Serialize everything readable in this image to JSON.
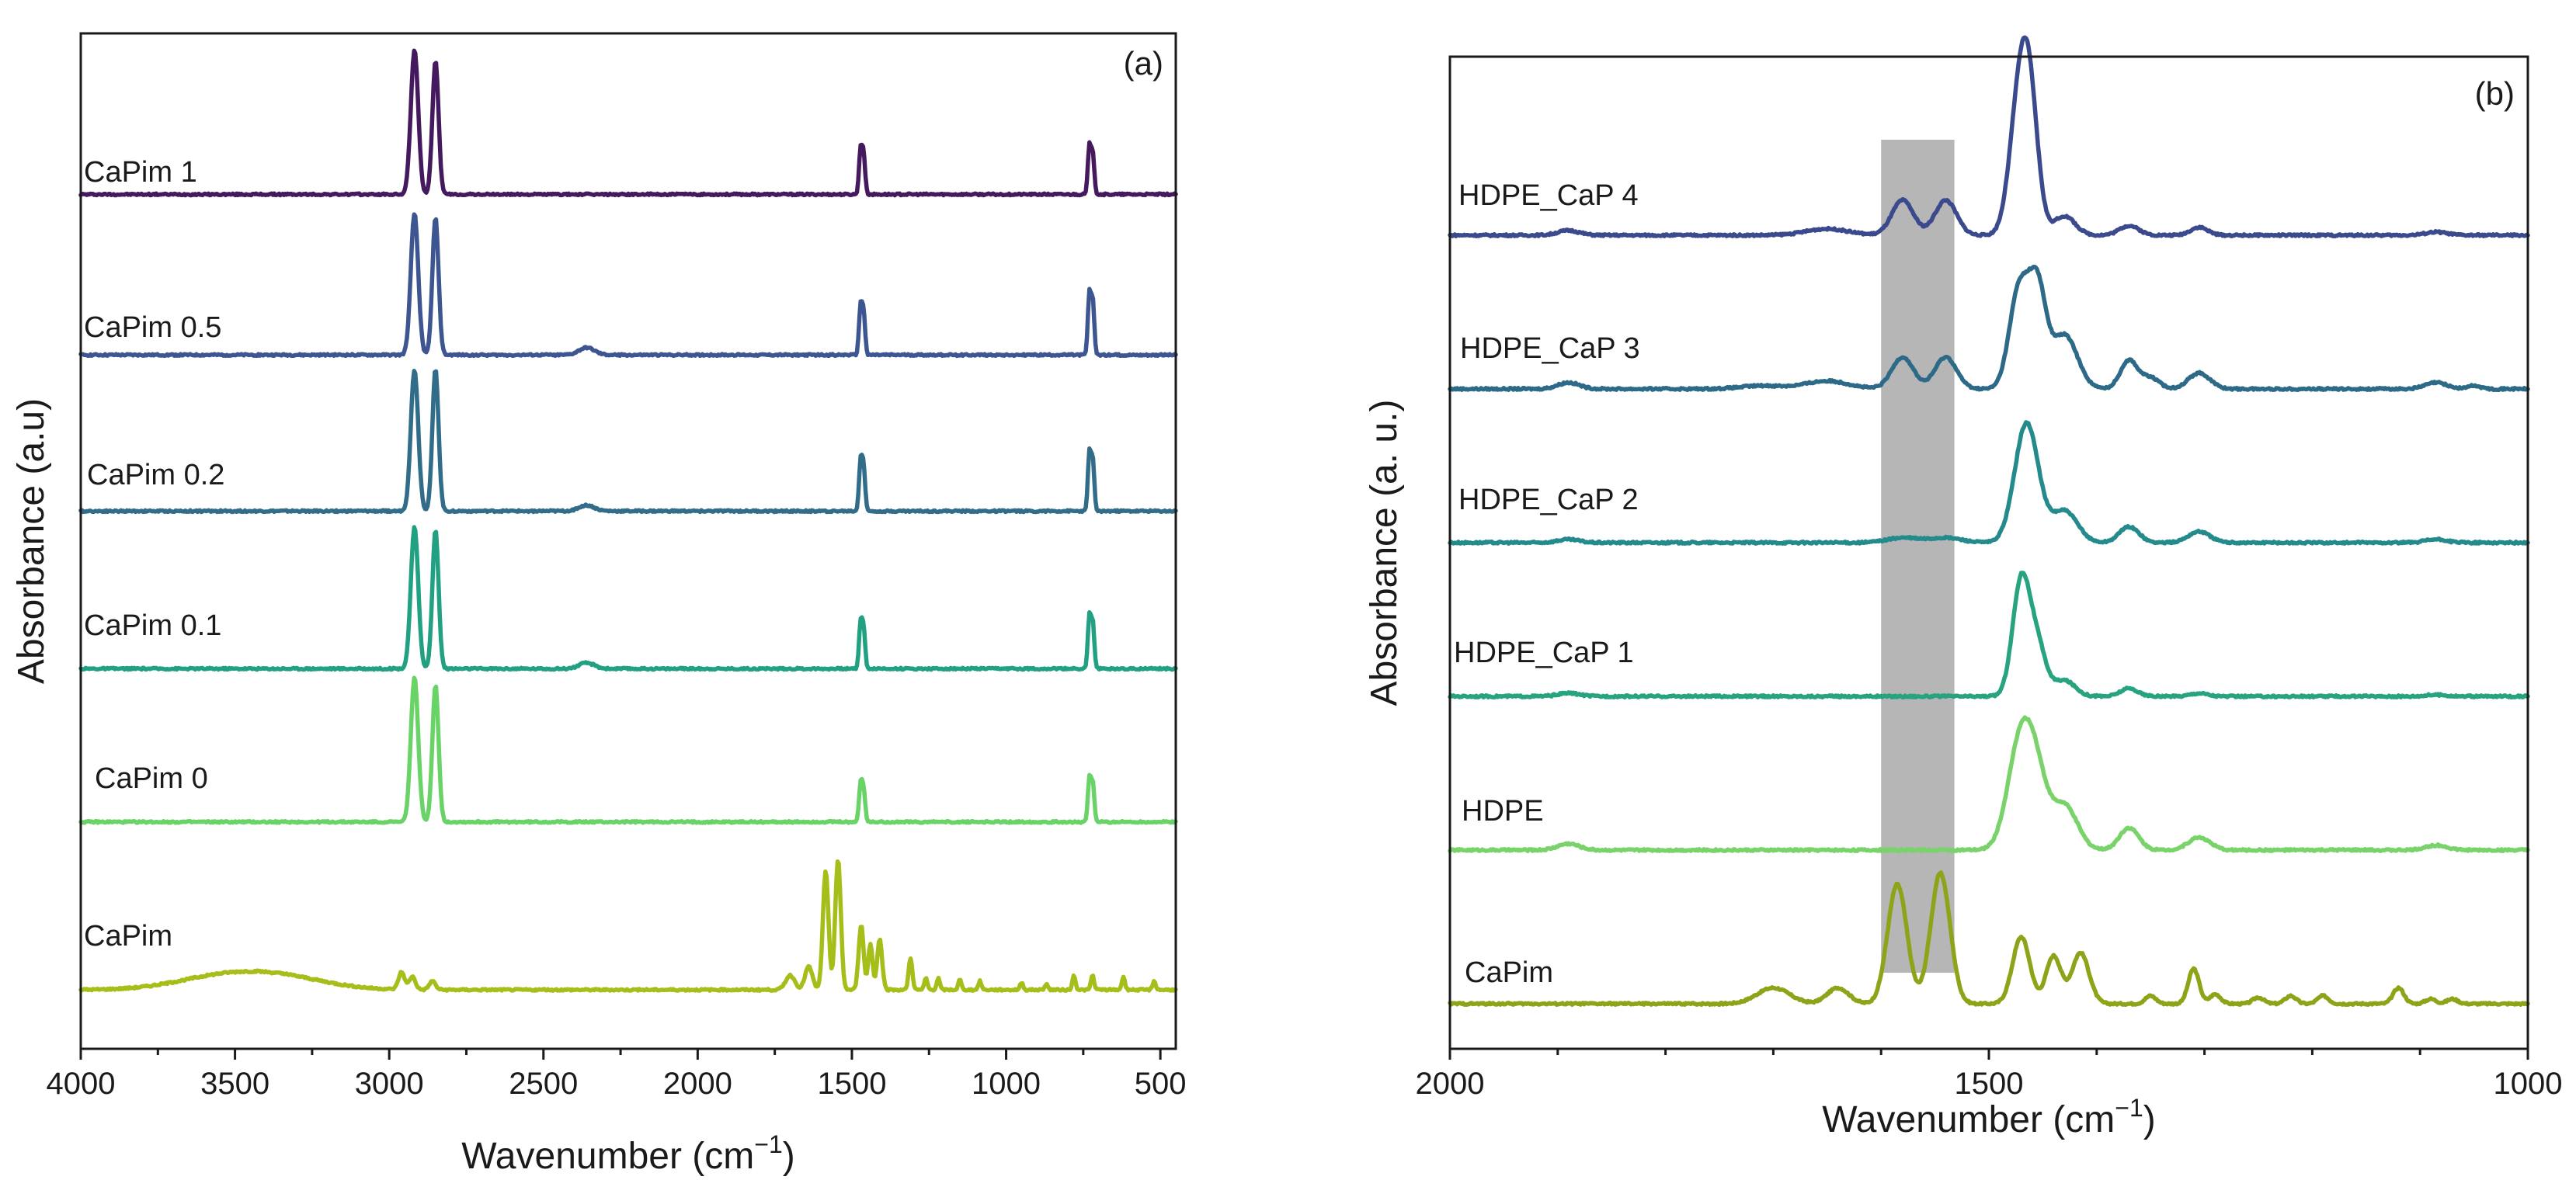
{
  "chart_data": [
    {
      "panel": "(a)",
      "type": "line",
      "subtype": "offset-spectra",
      "xlabel": "Wavenumber (cm",
      "xlabel_superscript": "−1",
      "xlabel_suffix": ")",
      "ylabel": "Absorbance (a.u)",
      "xlim": [
        4000,
        450
      ],
      "x_reversed": true,
      "xticks": [
        4000,
        3500,
        3000,
        2500,
        2000,
        1500,
        1000,
        500
      ],
      "yticks_visible": false,
      "grid": false,
      "series": [
        {
          "name": "CaPim 1",
          "color": "#44195e",
          "offset": 5.45,
          "baseline_drift": 0.0,
          "peaks": [
            [
              2918,
              1.0,
              12
            ],
            [
              2850,
              0.92,
              10
            ],
            [
              1472,
              0.3,
              5
            ],
            [
              1462,
              0.27,
              5
            ],
            [
              730,
              0.33,
              5
            ],
            [
              719,
              0.28,
              5
            ]
          ]
        },
        {
          "name": "CaPim 0.5",
          "color": "#3d5590",
          "offset": 4.35,
          "baseline_drift": 0.0,
          "peaks": [
            [
              2918,
              0.98,
              12
            ],
            [
              2850,
              0.95,
              10
            ],
            [
              2360,
              0.05,
              25
            ],
            [
              1472,
              0.33,
              5
            ],
            [
              1462,
              0.28,
              5
            ],
            [
              730,
              0.42,
              5
            ],
            [
              719,
              0.36,
              5
            ]
          ]
        },
        {
          "name": "CaPim 0.2",
          "color": "#316c88",
          "offset": 3.28,
          "baseline_drift": 0.0,
          "peaks": [
            [
              2918,
              0.98,
              12
            ],
            [
              2850,
              0.98,
              10
            ],
            [
              2360,
              0.04,
              25
            ],
            [
              1472,
              0.34,
              5
            ],
            [
              1462,
              0.3,
              5
            ],
            [
              730,
              0.4,
              5
            ],
            [
              719,
              0.34,
              5
            ]
          ]
        },
        {
          "name": "CaPim 0.1",
          "color": "#22a082",
          "offset": 2.2,
          "baseline_drift": 0.0,
          "peaks": [
            [
              2918,
              0.98,
              12
            ],
            [
              2850,
              0.96,
              10
            ],
            [
              2360,
              0.04,
              25
            ],
            [
              1472,
              0.31,
              5
            ],
            [
              1462,
              0.27,
              5
            ],
            [
              730,
              0.36,
              5
            ],
            [
              719,
              0.31,
              5
            ]
          ]
        },
        {
          "name": "CaPim 0",
          "color": "#6ad367",
          "offset": 1.15,
          "baseline_drift": 0.0,
          "peaks": [
            [
              2918,
              1.0,
              12
            ],
            [
              2850,
              0.95,
              10
            ],
            [
              1472,
              0.26,
              5
            ],
            [
              1462,
              0.22,
              5
            ],
            [
              730,
              0.3,
              5
            ],
            [
              719,
              0.26,
              5
            ]
          ]
        },
        {
          "name": "CaPim",
          "color": "#a7bd1a",
          "offset": 0.0,
          "baseline_drift": 0.0,
          "peaks": [
            [
              3550,
              0.08,
              150
            ],
            [
              3350,
              0.08,
              150
            ],
            [
              2960,
              0.12,
              10
            ],
            [
              2925,
              0.09,
              10
            ],
            [
              2860,
              0.06,
              10
            ],
            [
              1700,
              0.1,
              15
            ],
            [
              1640,
              0.16,
              12
            ],
            [
              1585,
              0.82,
              9
            ],
            [
              1545,
              0.9,
              9
            ],
            [
              1470,
              0.45,
              8
            ],
            [
              1440,
              0.32,
              7
            ],
            [
              1410,
              0.35,
              8
            ],
            [
              1310,
              0.22,
              6
            ],
            [
              1260,
              0.08,
              5
            ],
            [
              1220,
              0.08,
              5
            ],
            [
              1150,
              0.07,
              5
            ],
            [
              1085,
              0.06,
              5
            ],
            [
              950,
              0.05,
              5
            ],
            [
              870,
              0.04,
              5
            ],
            [
              780,
              0.1,
              5
            ],
            [
              720,
              0.1,
              5
            ],
            [
              620,
              0.09,
              5
            ],
            [
              520,
              0.06,
              5
            ]
          ]
        }
      ]
    },
    {
      "panel": "(b)",
      "type": "line",
      "subtype": "offset-spectra",
      "xlabel": "Wavenumber (cm",
      "xlabel_superscript": "−1",
      "xlabel_suffix": ")",
      "ylabel": "Absorbance (a. u.)",
      "xlim": [
        2000,
        1000
      ],
      "x_reversed": true,
      "xticks": [
        2000,
        1500,
        1000
      ],
      "highlight_band": [
        1600,
        1532
      ],
      "highlight_color": "#9e9e9e",
      "yticks_visible": false,
      "grid": false,
      "series": [
        {
          "name": "HDPE_CaP 4",
          "color": "#3b4a8c",
          "offset": 5.0,
          "peaks": [
            [
              1890,
              0.03,
              10
            ],
            [
              1650,
              0.04,
              20
            ],
            [
              1580,
              0.22,
              10
            ],
            [
              1540,
              0.22,
              10
            ],
            [
              1472,
              0.78,
              9
            ],
            [
              1462,
              0.7,
              8
            ],
            [
              1430,
              0.12,
              10
            ],
            [
              1370,
              0.06,
              9
            ],
            [
              1305,
              0.05,
              8
            ],
            [
              1085,
              0.02,
              10
            ]
          ]
        },
        {
          "name": "HDPE_CaP 3",
          "color": "#2d6a88",
          "offset": 4.0,
          "peaks": [
            [
              1890,
              0.04,
              10
            ],
            [
              1710,
              0.02,
              20
            ],
            [
              1650,
              0.05,
              20
            ],
            [
              1580,
              0.2,
              10
            ],
            [
              1540,
              0.2,
              10
            ],
            [
              1472,
              0.62,
              9
            ],
            [
              1455,
              0.6,
              8
            ],
            [
              1430,
              0.34,
              12
            ],
            [
              1370,
              0.18,
              8
            ],
            [
              1350,
              0.07,
              8
            ],
            [
              1305,
              0.1,
              10
            ],
            [
              1085,
              0.04,
              10
            ],
            [
              1050,
              0.02,
              6
            ]
          ]
        },
        {
          "name": "HDPE_CaP 2",
          "color": "#248a8b",
          "offset": 3.0,
          "peaks": [
            [
              1890,
              0.02,
              10
            ],
            [
              1580,
              0.03,
              15
            ],
            [
              1540,
              0.03,
              15
            ],
            [
              1465,
              0.75,
              11
            ],
            [
              1430,
              0.2,
              12
            ],
            [
              1370,
              0.1,
              9
            ],
            [
              1305,
              0.07,
              10
            ],
            [
              1085,
              0.02,
              10
            ]
          ]
        },
        {
          "name": "HDPE_CaP 1",
          "color": "#27a47f",
          "offset": 2.0,
          "peaks": [
            [
              1890,
              0.02,
              10
            ],
            [
              1470,
              0.72,
              8
            ],
            [
              1455,
              0.3,
              8
            ],
            [
              1430,
              0.1,
              10
            ],
            [
              1370,
              0.05,
              8
            ],
            [
              1305,
              0.02,
              8
            ],
            [
              1085,
              0.01,
              10
            ]
          ]
        },
        {
          "name": "HDPE",
          "color": "#79d36a",
          "offset": 1.0,
          "peaks": [
            [
              1890,
              0.04,
              10
            ],
            [
              1470,
              0.7,
              12
            ],
            [
              1455,
              0.3,
              10
            ],
            [
              1430,
              0.28,
              12
            ],
            [
              1370,
              0.14,
              9
            ],
            [
              1305,
              0.08,
              10
            ],
            [
              1085,
              0.03,
              10
            ]
          ]
        },
        {
          "name": "CaPim",
          "color": "#8da419",
          "offset": 0.0,
          "peaks": [
            [
              1700,
              0.1,
              15
            ],
            [
              1640,
              0.1,
              10
            ],
            [
              1585,
              0.75,
              9
            ],
            [
              1545,
              0.82,
              9
            ],
            [
              1470,
              0.42,
              8
            ],
            [
              1440,
              0.3,
              7
            ],
            [
              1415,
              0.32,
              8
            ],
            [
              1350,
              0.05,
              5
            ],
            [
              1310,
              0.22,
              5
            ],
            [
              1290,
              0.06,
              5
            ],
            [
              1250,
              0.04,
              5
            ],
            [
              1220,
              0.05,
              5
            ],
            [
              1190,
              0.05,
              5
            ],
            [
              1120,
              0.1,
              5
            ],
            [
              1090,
              0.03,
              5
            ],
            [
              1070,
              0.03,
              5
            ]
          ]
        }
      ]
    }
  ]
}
